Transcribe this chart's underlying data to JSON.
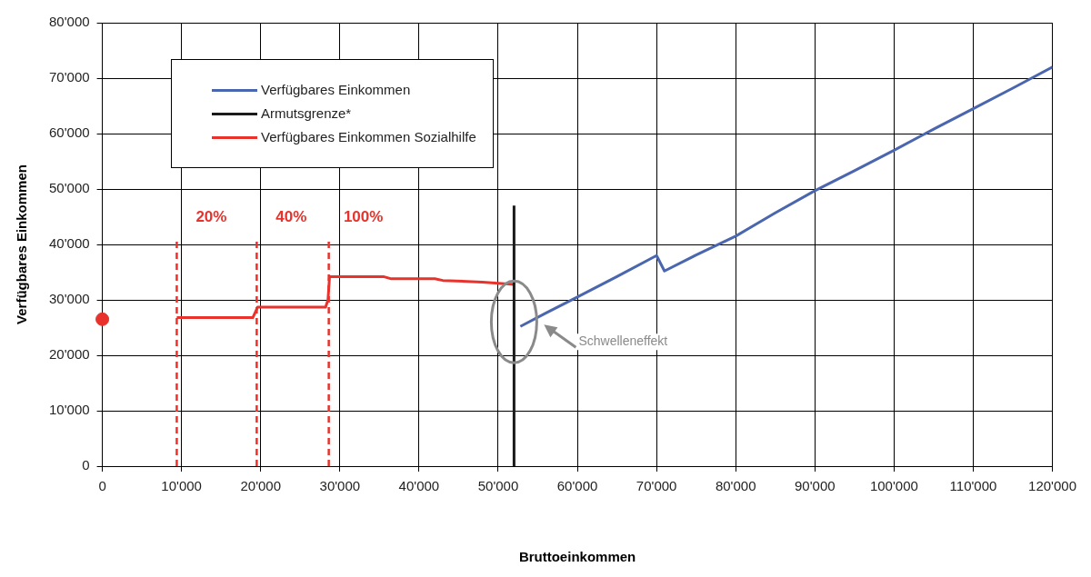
{
  "chart_data": {
    "type": "line",
    "xlabel": "Bruttoeinkommen",
    "ylabel": "Verfügbares Einkommen",
    "xlim": [
      0,
      120000
    ],
    "ylim": [
      0,
      80000
    ],
    "xticks": [
      {
        "value": 0,
        "label": "0"
      },
      {
        "value": 10000,
        "label": "10'000"
      },
      {
        "value": 20000,
        "label": "20'000"
      },
      {
        "value": 30000,
        "label": "30'000"
      },
      {
        "value": 40000,
        "label": "40'000"
      },
      {
        "value": 50000,
        "label": "50'000"
      },
      {
        "value": 60000,
        "label": "60'000"
      },
      {
        "value": 70000,
        "label": "70'000"
      },
      {
        "value": 80000,
        "label": "80'000"
      },
      {
        "value": 90000,
        "label": "90'000"
      },
      {
        "value": 100000,
        "label": "100'000"
      },
      {
        "value": 110000,
        "label": "110'000"
      },
      {
        "value": 120000,
        "label": "120'000"
      }
    ],
    "yticks": [
      {
        "value": 0,
        "label": "0"
      },
      {
        "value": 10000,
        "label": "10'000"
      },
      {
        "value": 20000,
        "label": "20'000"
      },
      {
        "value": 30000,
        "label": "30'000"
      },
      {
        "value": 40000,
        "label": "40'000"
      },
      {
        "value": 50000,
        "label": "50'000"
      },
      {
        "value": 60000,
        "label": "60'000"
      },
      {
        "value": 70000,
        "label": "70'000"
      },
      {
        "value": 80000,
        "label": "80'000"
      }
    ],
    "grid": true,
    "legend": "top left",
    "line_style": "solid",
    "series": [
      {
        "name": "Verfügbares Einkommen",
        "color": "#4a66ae",
        "x": [
          52800,
          56000,
          60000,
          65000,
          70000,
          71000,
          75000,
          80000,
          85000,
          90000,
          95000,
          100000,
          105000,
          110000,
          115000,
          120000
        ],
        "values": [
          25200,
          27600,
          30500,
          34200,
          38000,
          35200,
          38100,
          41500,
          45700,
          49700,
          53300,
          57000,
          60800,
          64500,
          68200,
          72000
        ]
      },
      {
        "name": "Armutsgrenze*",
        "color": "#1a1a1a",
        "x": [
          52000,
          52000
        ],
        "values": [
          0,
          47000
        ]
      },
      {
        "name": "Verfügbares Einkommen Sozialhilfe",
        "color": "#e8322b",
        "x": [
          9400,
          19000,
          19400,
          19600,
          28200,
          28500,
          28700,
          35500,
          36500,
          42000,
          43000,
          48000,
          50000,
          52000
        ],
        "values": [
          26800,
          26800,
          28000,
          28700,
          28700,
          30000,
          34200,
          34200,
          33800,
          33800,
          33500,
          33200,
          33000,
          32800
        ]
      },
      {
        "type": "scatter",
        "marker": "circle",
        "color": "#e8322b",
        "x": [
          0
        ],
        "values": [
          26500
        ]
      },
      {
        "color": "#e8322b",
        "line_style": "dashed",
        "x": [
          9400,
          9400
        ],
        "values": [
          0,
          41000
        ]
      },
      {
        "color": "#e8322b",
        "line_style": "dashed",
        "x": [
          19500,
          19500
        ],
        "values": [
          0,
          41000
        ]
      },
      {
        "color": "#e8322b",
        "line_style": "dashed",
        "x": [
          28600,
          28600
        ],
        "values": [
          0,
          41000
        ]
      }
    ],
    "annotations": [
      "20%",
      "40%",
      "100%",
      "Schwelleneffekt"
    ]
  }
}
